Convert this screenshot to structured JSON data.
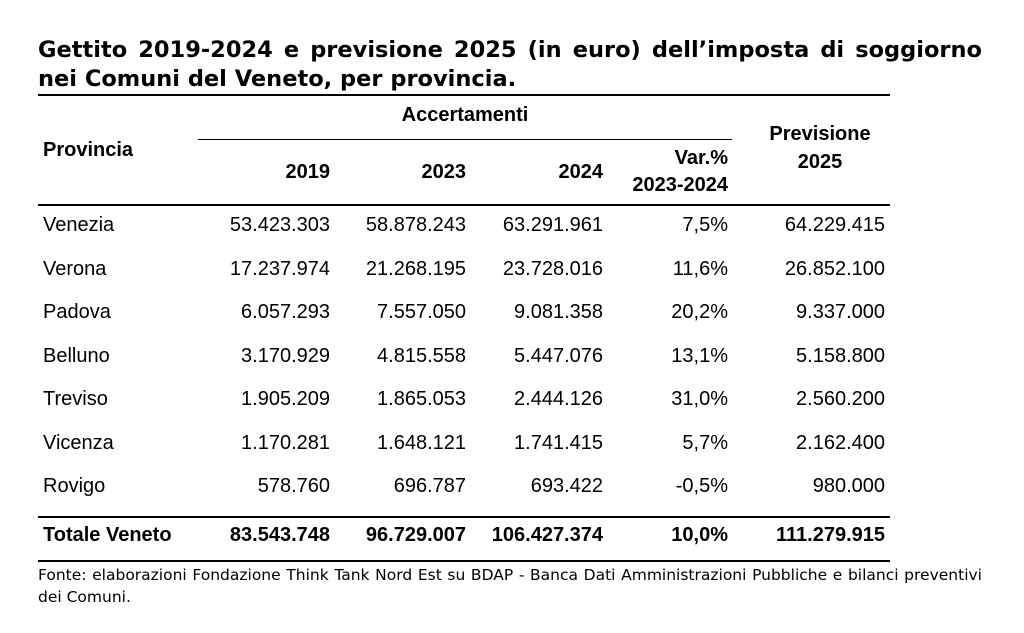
{
  "title": "Gettito 2019-2024 e previsione 2025 (in euro) dell’imposta di soggiorno nei Comuni del Veneto, per provincia.",
  "header": {
    "provincia": "Provincia",
    "accertamenti": "Accertamenti",
    "y2019": "2019",
    "y2023": "2023",
    "y2024": "2024",
    "var_line1": "Var.%",
    "var_line2": "2023-2024",
    "prev_line1": "Previsione",
    "prev_line2": "2025"
  },
  "rows": [
    {
      "provincia": "Venezia",
      "y2019": "53.423.303",
      "y2023": "58.878.243",
      "y2024": "63.291.961",
      "var": "7,5%",
      "prev": "64.229.415"
    },
    {
      "provincia": "Verona",
      "y2019": "17.237.974",
      "y2023": "21.268.195",
      "y2024": "23.728.016",
      "var": "11,6%",
      "prev": "26.852.100"
    },
    {
      "provincia": "Padova",
      "y2019": "6.057.293",
      "y2023": "7.557.050",
      "y2024": "9.081.358",
      "var": "20,2%",
      "prev": "9.337.000"
    },
    {
      "provincia": "Belluno",
      "y2019": "3.170.929",
      "y2023": "4.815.558",
      "y2024": "5.447.076",
      "var": "13,1%",
      "prev": "5.158.800"
    },
    {
      "provincia": "Treviso",
      "y2019": "1.905.209",
      "y2023": "1.865.053",
      "y2024": "2.444.126",
      "var": "31,0%",
      "prev": "2.560.200"
    },
    {
      "provincia": "Vicenza",
      "y2019": "1.170.281",
      "y2023": "1.648.121",
      "y2024": "1.741.415",
      "var": "5,7%",
      "prev": "2.162.400"
    },
    {
      "provincia": "Rovigo",
      "y2019": "578.760",
      "y2023": "696.787",
      "y2024": "693.422",
      "var": "-0,5%",
      "prev": "980.000"
    }
  ],
  "total": {
    "provincia": "Totale Veneto",
    "y2019": "83.543.748",
    "y2023": "96.729.007",
    "y2024": "106.427.374",
    "var": "10,0%",
    "prev": "111.279.915"
  },
  "footer": "Fonte: elaborazioni Fondazione Think Tank Nord Est su BDAP - Banca Dati Amministrazioni Pubbliche e bilanci preventivi dei Comuni."
}
